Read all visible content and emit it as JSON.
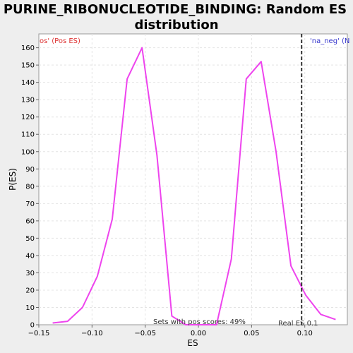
{
  "chart_data": {
    "type": "line",
    "title_lines": [
      "PURINE_RIBONUCLEOTIDE_BINDING: Random ES",
      "distribution"
    ],
    "xlabel": "ES",
    "ylabel": "P(ES)",
    "xlim": [
      -0.15,
      0.14
    ],
    "ylim": [
      0,
      168
    ],
    "xticks": [
      -0.15,
      -0.1,
      -0.05,
      0.0,
      0.05,
      0.1
    ],
    "xtick_labels": [
      "−0.15",
      "−0.10",
      "−0.05",
      "0.00",
      "0.05",
      "0.10"
    ],
    "yticks": [
      0,
      10,
      20,
      30,
      40,
      50,
      60,
      70,
      80,
      90,
      100,
      110,
      120,
      130,
      140,
      150,
      160
    ],
    "grid": true,
    "series": [
      {
        "color": "#ee44ee",
        "x": [
          -0.137,
          -0.123,
          -0.109,
          -0.095,
          -0.081,
          -0.067,
          -0.053,
          -0.039,
          -0.025,
          -0.012,
          0.002,
          0.017,
          0.031,
          0.045,
          0.059,
          0.073,
          0.087,
          0.101,
          0.115,
          0.129
        ],
        "y": [
          1,
          2,
          10,
          28,
          61,
          142,
          160,
          98,
          5,
          0,
          0,
          0,
          38,
          142,
          152,
          100,
          34,
          17,
          6,
          3
        ]
      }
    ],
    "real_es": {
      "x": 0.097,
      "label": "Real ES 0.1"
    },
    "legend_left": {
      "text": "os' (Pos ES)",
      "color": "#dd3333"
    },
    "legend_right": {
      "text": "'na_neg' (N",
      "color": "#3333cc"
    },
    "bottom_note": "Sets with pos scores: 49%"
  }
}
